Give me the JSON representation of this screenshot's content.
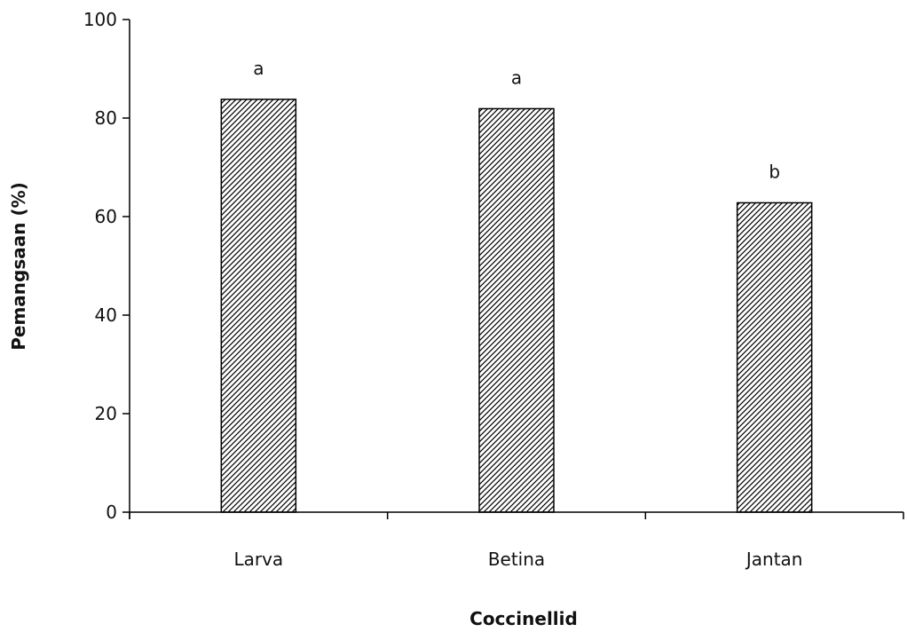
{
  "chart_data": {
    "type": "bar",
    "title": "",
    "xlabel": "Coccinellid",
    "ylabel": "Pemangsaan (%)",
    "categories": [
      "Larva",
      "Betina",
      "Jantan"
    ],
    "values": [
      83.8,
      81.9,
      62.8
    ],
    "significance_labels": [
      "a",
      "a",
      "b"
    ],
    "ylim": [
      0,
      100
    ],
    "yticks": [
      "0",
      "20",
      "40",
      "60",
      "80",
      "100"
    ],
    "grid": false,
    "legend": "none",
    "bar_pattern": "diagonal-hatch",
    "colors": {
      "bar_fill": "#ffffff",
      "hatch": "#000000",
      "axis": "#000000"
    }
  }
}
